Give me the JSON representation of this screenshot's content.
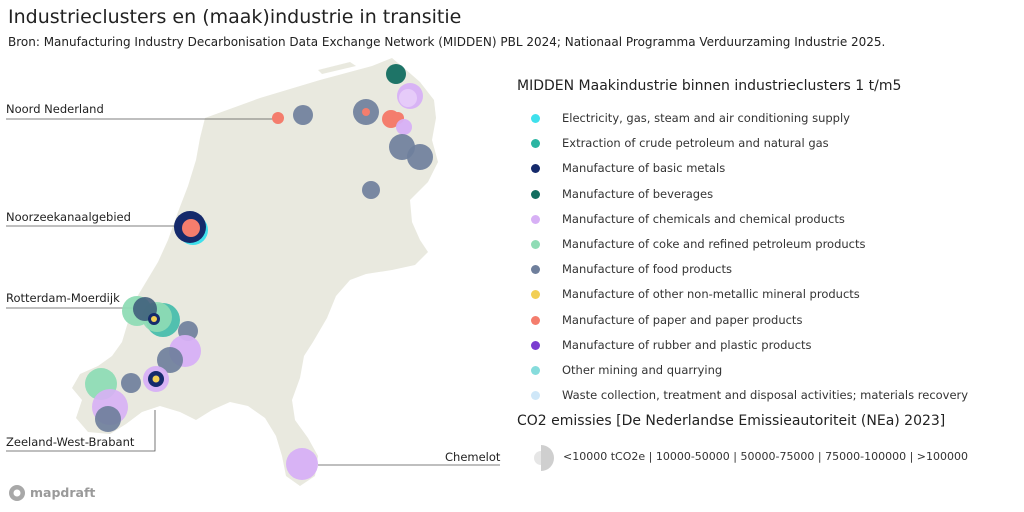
{
  "title": "Industrieclusters en (maak)industrie in transitie",
  "subtitle": "Bron: Manufacturing Industry Decarbonisation Data Exchange Network (MIDDEN) PBL 2024; Nationaal Programma Verduurzaming Industrie 2025.",
  "clusters": {
    "noord_nederland": "Noord Nederland",
    "noordzeekanaalgebied": "Noorzeekanaalgebied",
    "rotterdam_moerdijk": "Rotterdam-Moerdijk",
    "zeeland_west_brabant": "Zeeland-West-Brabant",
    "chemelot": "Chemelot"
  },
  "legend": {
    "title": "MIDDEN Maakindustrie binnen industrieclusters 1 t/m5",
    "items": [
      {
        "label": "Electricity, gas, steam and air conditioning supply",
        "color": "#3fe0ec"
      },
      {
        "label": "Extraction of crude petroleum and natural gas",
        "color": "#2bb5a2"
      },
      {
        "label": "Manufacture of basic metals",
        "color": "#152a6b"
      },
      {
        "label": "Manufacture of beverages",
        "color": "#136e60"
      },
      {
        "label": "Manufacture of chemicals and chemical products",
        "color": "#d7b0f5"
      },
      {
        "label": "Manufacture of coke and refined petroleum products",
        "color": "#8fdcb5"
      },
      {
        "label": "Manufacture of food products",
        "color": "#6f7f9c"
      },
      {
        "label": "Manufacture of other non-metallic mineral products",
        "color": "#f2cf55"
      },
      {
        "label": "Manufacture of paper and paper products",
        "color": "#f47d6d"
      },
      {
        "label": "Manufacture of rubber and plastic products",
        "color": "#7b3dd0"
      },
      {
        "label": "Other mining and quarrying",
        "color": "#86dcdc"
      },
      {
        "label": "Waste collection, treatment and disposal activities; materials recovery",
        "color": "#cfe7f8"
      }
    ]
  },
  "size_legend": {
    "title": "CO2 emissies [De Nederlandse Emissieautoriteit (NEa) 2023]",
    "ranges": "<10000 tCO2e | 10000-50000 | 50000-75000 | 75000-100000 | >100000"
  },
  "brand": "mapdraft",
  "colors": {
    "land": "#e9e9df",
    "background": "#ffffff",
    "leader_line": "#555555"
  }
}
